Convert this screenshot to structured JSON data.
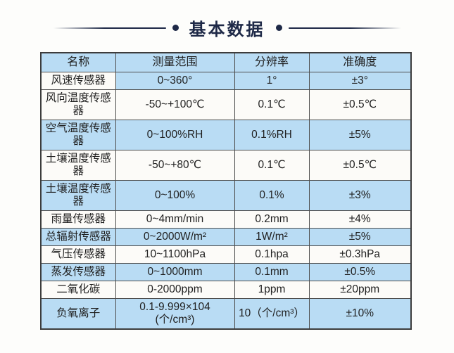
{
  "title": "基本数据",
  "colors": {
    "navy": "#1e2947",
    "row_blue": "#b9dcf4",
    "row_white": "#fcfbf8",
    "border": "#4e4e4e",
    "text": "#1f1f1f"
  },
  "table": {
    "headers": [
      "名称",
      "测量范围",
      "分辨率",
      "准确度"
    ],
    "rows": [
      {
        "name": "风速传感器",
        "range": "0~360°",
        "resolution": "1°",
        "accuracy": "±3°",
        "name_bg": "white",
        "data_bg": "blue"
      },
      {
        "name": "风向温度传感器",
        "range": "-50~+100℃",
        "resolution": "0.1℃",
        "accuracy": "±0.5℃",
        "name_bg": "white",
        "data_bg": "white"
      },
      {
        "name": "空气温度传感器",
        "range": "0~100%RH",
        "resolution": "0.1%RH",
        "accuracy": "±5%",
        "name_bg": "blue",
        "data_bg": "blue"
      },
      {
        "name": "土壤温度传感器",
        "range": "-50~+80℃",
        "resolution": "0.1℃",
        "accuracy": "±0.5℃",
        "name_bg": "white",
        "data_bg": "white"
      },
      {
        "name": "土壤温度传感器",
        "range": "0~100%",
        "resolution": "0.1%",
        "accuracy": "±3%",
        "name_bg": "blue",
        "data_bg": "blue"
      },
      {
        "name": "雨量传感器",
        "range": "0~4mm/min",
        "resolution": "0.2mm",
        "accuracy": "±4%",
        "name_bg": "white",
        "data_bg": "white"
      },
      {
        "name": "总辐射传感器",
        "range": "0~2000W/m²",
        "resolution": "1W/m²",
        "accuracy": "±5%",
        "name_bg": "blue",
        "data_bg": "blue"
      },
      {
        "name": "气压传感器",
        "range": "10~1100hPa",
        "resolution": "0.1hpa",
        "accuracy": "±0.3hPa",
        "name_bg": "white",
        "data_bg": "white"
      },
      {
        "name": "蒸发传感器",
        "range": "0~1000mm",
        "resolution": "0.1mm",
        "accuracy": "±0.5%",
        "name_bg": "blue",
        "data_bg": "blue"
      },
      {
        "name": "二氧化碳",
        "range": "0-2000ppm",
        "resolution": "1ppm",
        "accuracy": "±20ppm",
        "name_bg": "white",
        "data_bg": "white"
      },
      {
        "name": "负氧离子",
        "range": "0.1-9.999×104\n(个/cm³)",
        "resolution": "10（个/cm³）",
        "accuracy": "±10%",
        "name_bg": "blue",
        "data_bg": "blue"
      }
    ]
  }
}
